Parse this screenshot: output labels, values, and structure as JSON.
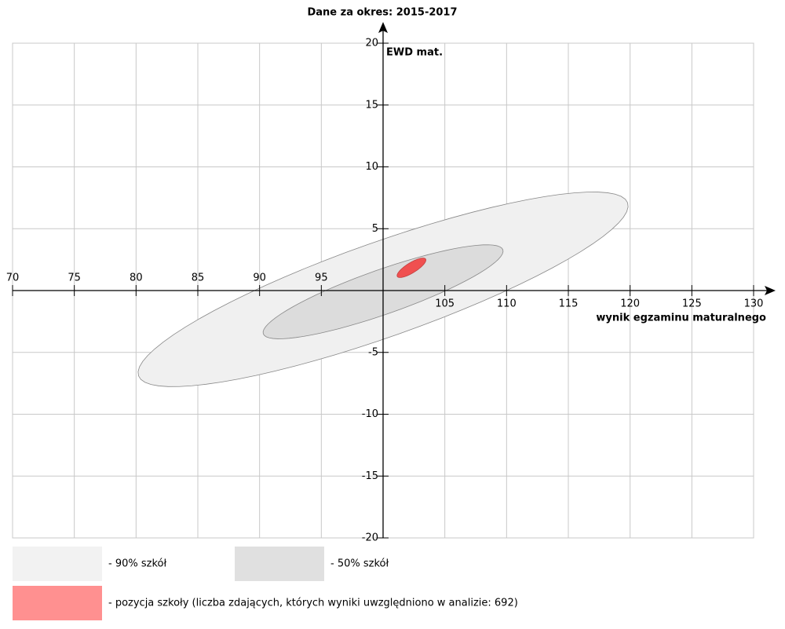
{
  "chart_data": {
    "type": "ellipse",
    "title": "Dane za okres: 2015-2017",
    "x_label": "wynik egzaminu maturalnego",
    "y_label": "EWD mat.",
    "xlim": [
      70,
      130
    ],
    "ylim": [
      -20,
      20
    ],
    "xticks": [
      70,
      75,
      80,
      85,
      90,
      95,
      105,
      110,
      115,
      120,
      125,
      130
    ],
    "yticks": [
      -20,
      -15,
      -10,
      -5,
      5,
      10,
      15,
      20
    ],
    "axis_origin": {
      "x": 100,
      "y": 0
    },
    "grid": true,
    "series": [
      {
        "name": "- 90% szkół",
        "color": "#f0f0f0",
        "legend_color": "#f2f2f2",
        "center": [
          100.0,
          0.1
        ],
        "major_end": [
          119.8,
          7.1
        ],
        "minor_end": [
          98.7,
          3.7
        ]
      },
      {
        "name": "- 50% szkół",
        "color": "#dcdcdc",
        "legend_color": "#e0e0e0",
        "center": [
          100.0,
          -0.1
        ],
        "major_end": [
          109.7,
          3.3
        ],
        "minor_end": [
          99.4,
          1.6
        ]
      },
      {
        "name": "- pozycja szkoły (liczba zdających, których wyniki uwzględniono w analizie: 692)",
        "color": "#f05050",
        "legend_color": "#ff9090",
        "center": [
          102.3,
          1.84
        ],
        "major_end": [
          103.45,
          2.54
        ],
        "minor_end": [
          102.1,
          2.2
        ]
      }
    ]
  }
}
